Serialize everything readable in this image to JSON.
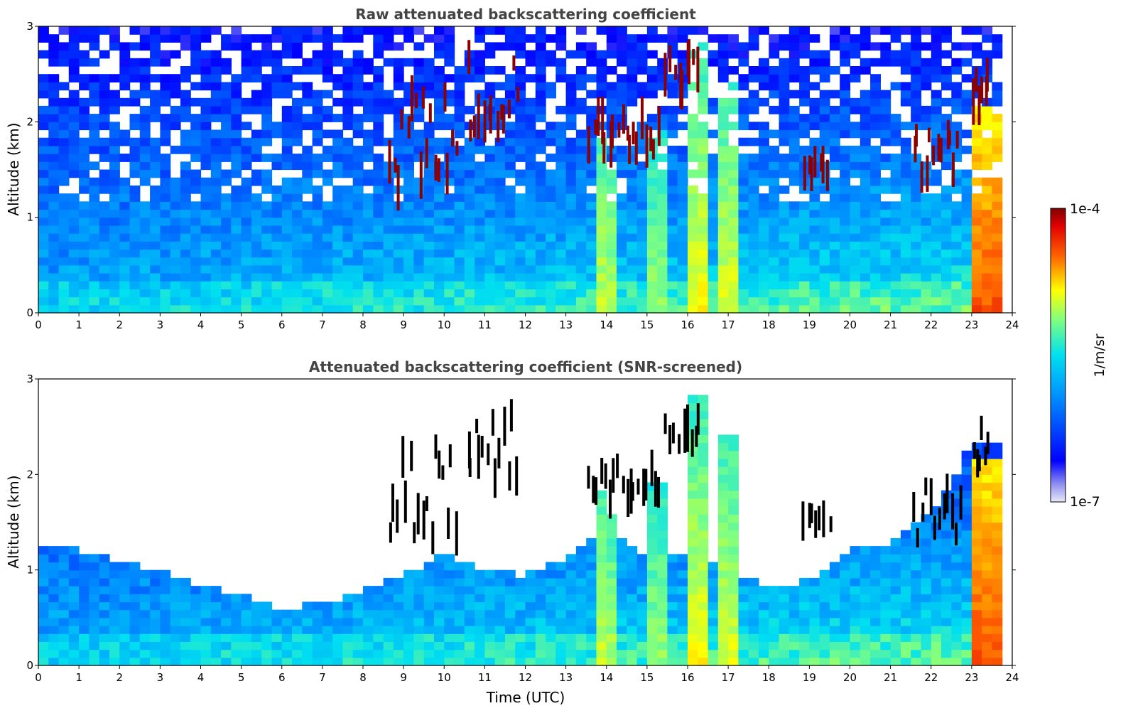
{
  "chart_data": [
    {
      "type": "heatmap",
      "title": "Raw attenuated backscattering coefficient",
      "xlabel": "",
      "ylabel": "Altitude (km)",
      "xlim": [
        0,
        24
      ],
      "ylim": [
        0,
        3
      ],
      "xticks": [
        "0",
        "1",
        "2",
        "3",
        "4",
        "5",
        "6",
        "7",
        "8",
        "9",
        "10",
        "11",
        "12",
        "13",
        "14",
        "15",
        "16",
        "17",
        "18",
        "19",
        "20",
        "21",
        "22",
        "23",
        "24"
      ],
      "yticks": [
        "0",
        "1",
        "2",
        "3"
      ],
      "screened": false,
      "features": [
        {
          "kind": "column",
          "t0": 23.2,
          "t1": 23.8,
          "h0": 0,
          "h1": 2.2,
          "level": 0.86
        },
        {
          "kind": "column",
          "t0": 16.1,
          "t1": 16.3,
          "h0": 0,
          "h1": 2.8,
          "level": 0.72
        },
        {
          "kind": "column",
          "t0": 16.85,
          "t1": 17.05,
          "h0": 0,
          "h1": 2.4,
          "level": 0.7
        },
        {
          "kind": "column",
          "t0": 13.75,
          "t1": 13.9,
          "h0": 0,
          "h1": 1.8,
          "level": 0.68
        },
        {
          "kind": "column",
          "t0": 14.15,
          "t1": 14.25,
          "h0": 0,
          "h1": 1.6,
          "level": 0.66
        },
        {
          "kind": "column",
          "t0": 15.15,
          "t1": 15.3,
          "h0": 0,
          "h1": 1.9,
          "level": 0.64
        },
        {
          "kind": "cloud",
          "t0": 13.5,
          "t1": 15.3,
          "h0": 1.7,
          "h1": 2.1
        },
        {
          "kind": "cloud",
          "t0": 15.4,
          "t1": 16.3,
          "h0": 2.3,
          "h1": 2.7
        },
        {
          "kind": "cloud",
          "t0": 10.5,
          "t1": 11.8,
          "h0": 1.9,
          "h1": 2.7
        },
        {
          "kind": "cloud",
          "t0": 8.6,
          "t1": 10.3,
          "h0": 1.3,
          "h1": 2.3
        },
        {
          "kind": "cloud",
          "t0": 18.8,
          "t1": 19.5,
          "h0": 1.4,
          "h1": 1.6
        },
        {
          "kind": "cloud",
          "t0": 21.5,
          "t1": 22.7,
          "h0": 1.3,
          "h1": 1.9
        },
        {
          "kind": "cloud",
          "t0": 23.0,
          "t1": 23.4,
          "h0": 2.0,
          "h1": 2.5
        }
      ]
    },
    {
      "type": "heatmap",
      "title": "Attenuated backscattering coefficient (SNR-screened)",
      "xlabel": "Time (UTC)",
      "ylabel": "Altitude (km)",
      "xlim": [
        0,
        24
      ],
      "ylim": [
        0,
        3
      ],
      "xticks": [
        "0",
        "1",
        "2",
        "3",
        "4",
        "5",
        "6",
        "7",
        "8",
        "9",
        "10",
        "11",
        "12",
        "13",
        "14",
        "15",
        "16",
        "17",
        "18",
        "19",
        "20",
        "21",
        "22",
        "23",
        "24"
      ],
      "yticks": [
        "0",
        "1",
        "2",
        "3"
      ],
      "screened": true,
      "boundary_layer_top_km": [
        {
          "t": 0,
          "h": 1.3
        },
        {
          "t": 1,
          "h": 1.2
        },
        {
          "t": 2,
          "h": 1.1
        },
        {
          "t": 3,
          "h": 1.0
        },
        {
          "t": 4,
          "h": 0.85
        },
        {
          "t": 5,
          "h": 0.75
        },
        {
          "t": 6,
          "h": 0.6
        },
        {
          "t": 7,
          "h": 0.65
        },
        {
          "t": 8,
          "h": 0.8
        },
        {
          "t": 9,
          "h": 0.95
        },
        {
          "t": 10,
          "h": 1.15
        },
        {
          "t": 11,
          "h": 1.0
        },
        {
          "t": 12,
          "h": 0.95
        },
        {
          "t": 13,
          "h": 1.1
        },
        {
          "t": 14,
          "h": 1.5
        },
        {
          "t": 15,
          "h": 1.1
        },
        {
          "t": 16,
          "h": 1.2
        },
        {
          "t": 17,
          "h": 1.0
        },
        {
          "t": 18,
          "h": 0.8
        },
        {
          "t": 19,
          "h": 0.9
        },
        {
          "t": 20,
          "h": 1.2
        },
        {
          "t": 21,
          "h": 1.3
        },
        {
          "t": 22,
          "h": 1.6
        },
        {
          "t": 23,
          "h": 2.3
        },
        {
          "t": 24,
          "h": 2.3
        }
      ]
    }
  ],
  "colorbar": {
    "label": "1/m/sr",
    "max_label": "1e-4",
    "min_label": "1e-7",
    "scale": "log",
    "range": [
      1e-07,
      0.0001
    ],
    "colormap": "jet"
  },
  "colors": {
    "frame": "#000000",
    "title": "#444444",
    "cloud": "#8b0000",
    "screened_cloud": "#000000"
  }
}
